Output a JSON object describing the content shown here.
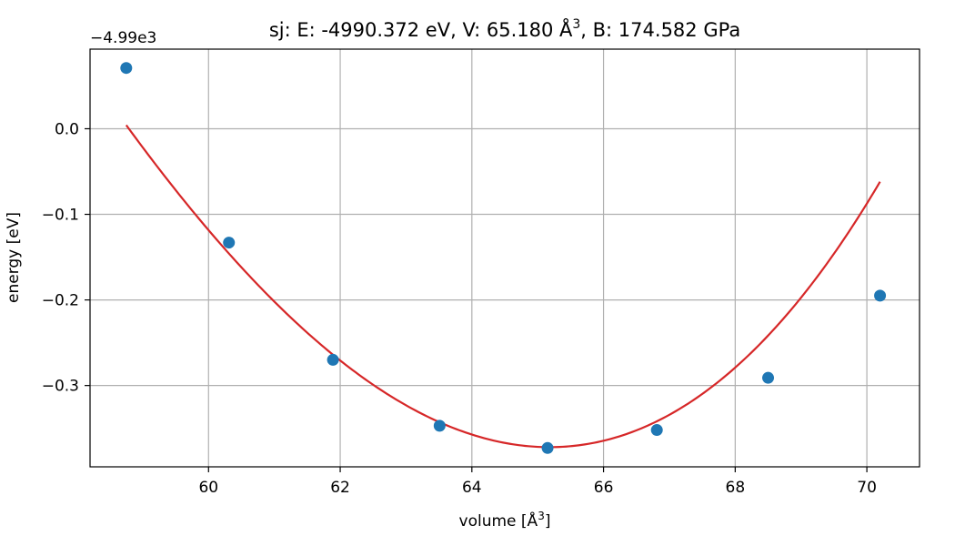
{
  "chart_data": {
    "type": "scatter",
    "title": "sj: E: -4990.372 eV, V: 65.180 Å",
    "title_superscript": "3",
    "title_suffix": ", B: 174.582 GPa",
    "xlabel": "volume [Å",
    "xlabel_superscript": "3",
    "xlabel_suffix": "]",
    "ylabel": "energy [eV]",
    "y_offset_label": "−4.99e3",
    "xlim": [
      58.2,
      70.8
    ],
    "ylim": [
      -0.395,
      0.093
    ],
    "xticks": [
      60,
      62,
      64,
      66,
      68,
      70
    ],
    "xtick_labels": [
      "60",
      "62",
      "64",
      "66",
      "68",
      "70"
    ],
    "yticks": [
      0.0,
      -0.1,
      -0.2,
      -0.3
    ],
    "ytick_labels": [
      "0.0",
      "−0.1",
      "−0.2",
      "−0.3"
    ],
    "grid": true,
    "series": [
      {
        "kind": "points",
        "color": "#1f77b4",
        "x": [
          58.75,
          60.31,
          61.89,
          63.51,
          65.15,
          66.81,
          68.5,
          70.2
        ],
        "y": [
          0.071,
          -0.133,
          -0.27,
          -0.347,
          -0.373,
          -0.352,
          -0.291,
          -0.195
        ]
      },
      {
        "kind": "fit_curve",
        "color": "#d62728",
        "x_range": [
          58.75,
          70.2
        ],
        "min_x": 65.18,
        "min_y": -0.372,
        "coefficients": [
          0.0109,
          0.00028
        ]
      }
    ]
  }
}
